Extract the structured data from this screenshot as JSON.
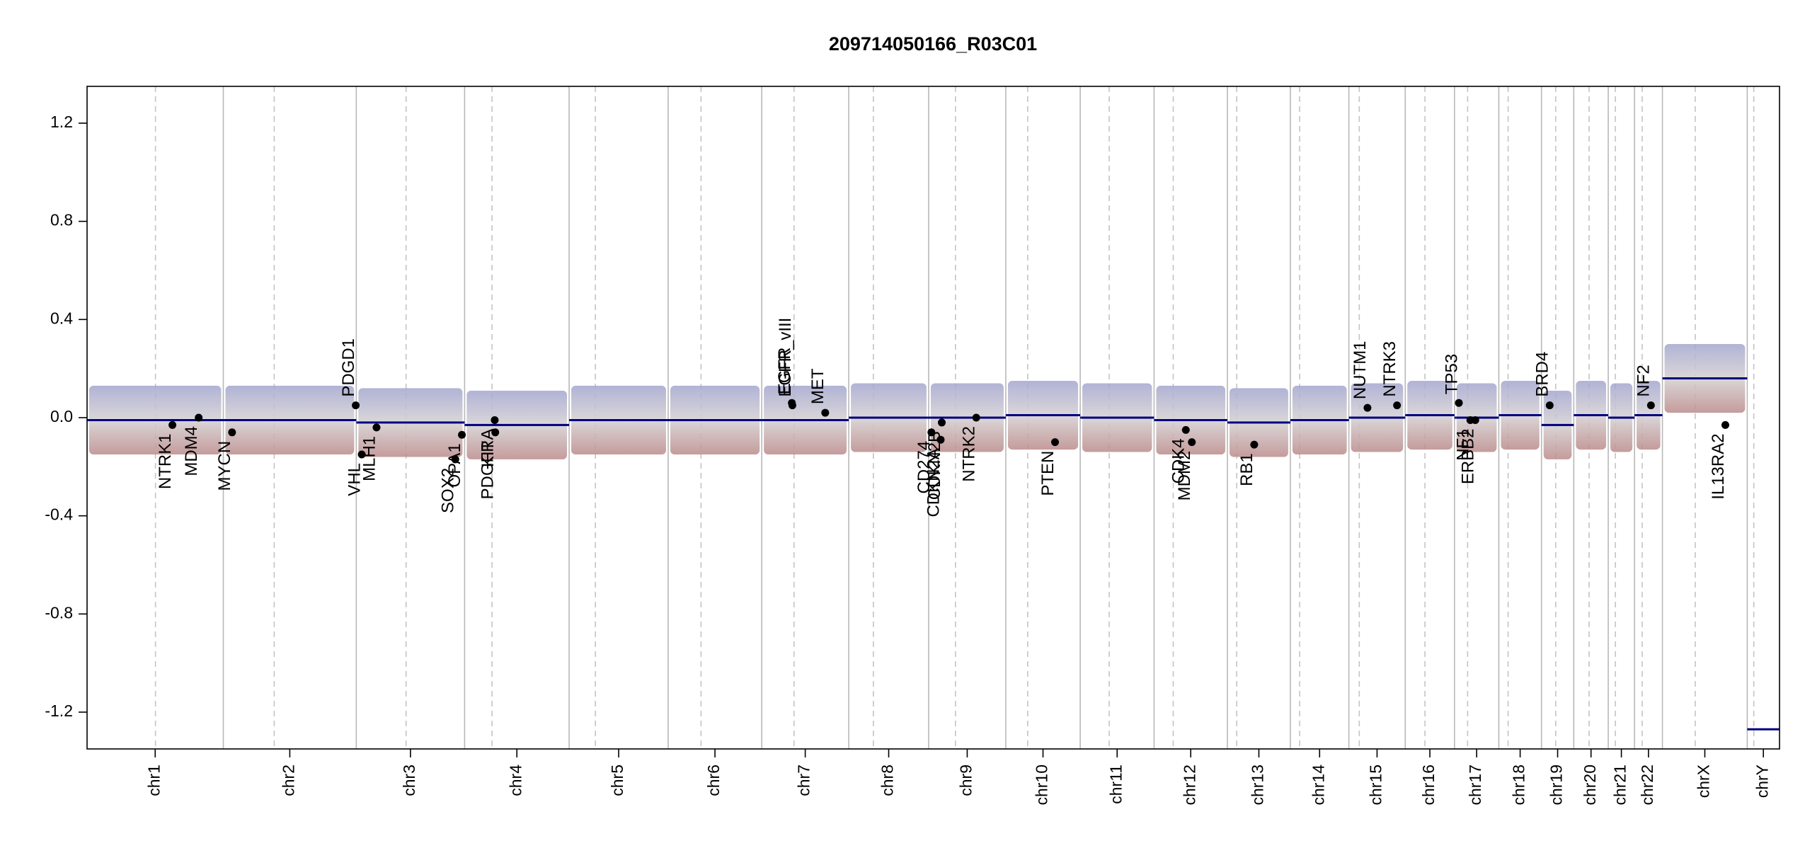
{
  "chart_data": {
    "type": "cnv",
    "title": "209714050166_R03C01",
    "ylim": [
      -1.35,
      1.35
    ],
    "yticks": [
      -1.2,
      -0.8,
      -0.4,
      {
        "value": 0,
        "label": "0.0"
      },
      0.4,
      0.8,
      1.2
    ],
    "xlim": [
      0,
      3093
    ],
    "chromosomes": {
      "names": [
        "chr1",
        "chr2",
        "chr3",
        "chr4",
        "chr5",
        "chr6",
        "chr7",
        "chr8",
        "chr9",
        "chr10",
        "chr11",
        "chr12",
        "chr13",
        "chr14",
        "chr15",
        "chr16",
        "chr17",
        "chr18",
        "chr19",
        "chr20",
        "chr21",
        "chr22",
        "chrX",
        "chrY"
      ],
      "lengths": [
        249,
        243,
        198,
        191,
        181,
        171,
        159,
        146,
        141,
        136,
        135,
        134,
        115,
        107,
        103,
        90,
        81,
        78,
        59,
        63,
        48,
        51,
        155,
        59
      ],
      "centromeres": [
        125,
        93,
        91,
        50,
        48,
        60,
        59,
        45,
        49,
        40,
        53,
        35,
        17,
        17,
        19,
        36,
        24,
        17,
        26,
        28,
        13,
        14,
        60,
        12
      ]
    },
    "segments": {
      "color": "#000080",
      "starts": [
        0,
        249,
        492,
        690,
        881,
        1062,
        1233,
        1392,
        1538,
        1679,
        1815,
        1950,
        2084,
        2199,
        2306,
        2409,
        2499,
        2580,
        2658,
        2717,
        2780,
        2828,
        2879,
        3034
      ],
      "ends": [
        249,
        492,
        690,
        881,
        1062,
        1233,
        1392,
        1538,
        1679,
        1815,
        1950,
        2084,
        2199,
        2306,
        2409,
        2499,
        2580,
        2658,
        2717,
        2780,
        2828,
        2879,
        3034,
        3093
      ],
      "values": [
        -0.01,
        -0.01,
        -0.02,
        -0.03,
        -0.01,
        -0.01,
        -0.01,
        0.0,
        0.0,
        0.01,
        0.0,
        -0.01,
        -0.02,
        -0.01,
        0.0,
        0.01,
        0.0,
        0.01,
        -0.03,
        0.01,
        0.0,
        0.01,
        0.16,
        -1.27
      ]
    },
    "genes": {
      "color": "#000000",
      "names": [
        "NTRK1",
        "MDM4",
        "MYCN",
        "PDGD1",
        "VHL",
        "MLH1",
        "SOX2",
        "OPA1",
        "PDGFRA",
        "KIT",
        "EGFR",
        "EGFR_vIII",
        "MET",
        "CD274",
        "CDKN2A",
        "CDKN2B",
        "NTRK2",
        "PTEN",
        "CDK4",
        "MDM2",
        "RB1",
        "NUTM1",
        "NTRK3",
        "TP53",
        "NF1",
        "ERBB2",
        "BRD4",
        "NF2",
        "IL13RA2"
      ],
      "positions": [
        156,
        204,
        265,
        491,
        502,
        529,
        673,
        685,
        745,
        746,
        1288,
        1289,
        1349,
        1543,
        1560,
        1562,
        1625,
        1769,
        2008,
        2019,
        2133,
        2340,
        2394,
        2507,
        2528,
        2537,
        2673,
        2858,
        2994
      ],
      "values": [
        -0.03,
        0.0,
        -0.06,
        0.05,
        -0.15,
        -0.04,
        -0.17,
        -0.07,
        -0.01,
        -0.06,
        0.06,
        0.05,
        0.02,
        -0.06,
        -0.09,
        -0.02,
        0.0,
        -0.1,
        -0.05,
        -0.1,
        -0.11,
        0.04,
        0.05,
        0.06,
        -0.01,
        -0.01,
        0.05,
        0.05,
        -0.03
      ]
    }
  }
}
